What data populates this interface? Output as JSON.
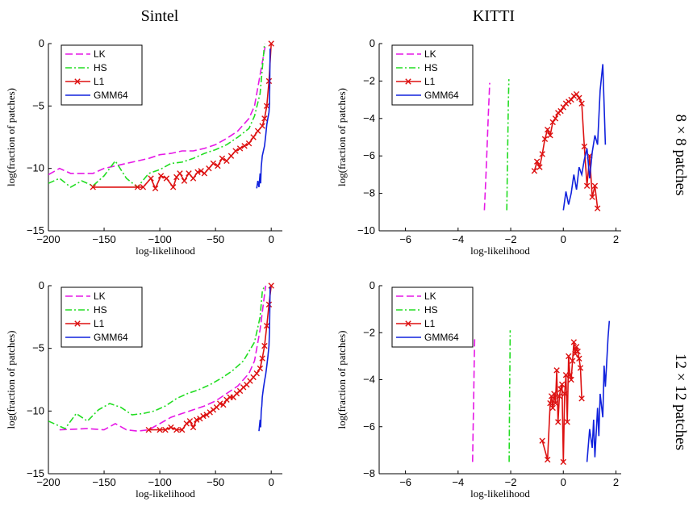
{
  "figure": {
    "col_titles": [
      "Sintel",
      "KITTI"
    ],
    "row_labels": [
      "8 × 8  patches",
      "12 × 12  patches"
    ]
  },
  "legend": [
    "LK",
    "HS",
    "L1",
    "GMM64"
  ],
  "colors": {
    "LK": "#e619e6",
    "HS": "#22dd22",
    "L1": "#dd1111",
    "GMM64": "#1122dd"
  },
  "chart_data": [
    {
      "type": "line",
      "dataset": "Sintel",
      "patches": "8 × 8",
      "xlabel": "log-likelihood",
      "ylabel": "log(fraction of patches)",
      "xlim": [
        -200,
        10
      ],
      "ylim": [
        -15,
        0
      ],
      "xticks": [
        -200,
        -150,
        -100,
        -50,
        0
      ],
      "yticks": [
        -15,
        -10,
        -5,
        0
      ],
      "grid": false,
      "legend_position": "top-left",
      "series": [
        {
          "name": "LK",
          "style": "dashed",
          "x": [
            -200,
            -190,
            -180,
            -170,
            -160,
            -150,
            -140,
            -130,
            -120,
            -110,
            -100,
            -90,
            -80,
            -70,
            -60,
            -50,
            -40,
            -30,
            -20,
            -15,
            -10,
            -5
          ],
          "y": [
            -10.5,
            -10.0,
            -10.4,
            -10.4,
            -10.4,
            -10.0,
            -9.8,
            -9.6,
            -9.4,
            -9.2,
            -8.9,
            -8.8,
            -8.6,
            -8.6,
            -8.4,
            -8.1,
            -7.6,
            -7.0,
            -6.0,
            -5.0,
            -2.5,
            0
          ]
        },
        {
          "name": "HS",
          "style": "dashdot",
          "x": [
            -200,
            -190,
            -180,
            -170,
            -160,
            -150,
            -140,
            -130,
            -120,
            -110,
            -100,
            -90,
            -80,
            -70,
            -60,
            -50,
            -40,
            -30,
            -20,
            -15,
            -10,
            -6
          ],
          "y": [
            -11.2,
            -10.8,
            -11.5,
            -11.0,
            -11.4,
            -10.6,
            -9.4,
            -10.8,
            -11.5,
            -10.4,
            -10.1,
            -9.6,
            -9.5,
            -9.2,
            -8.8,
            -8.5,
            -8.1,
            -7.5,
            -6.8,
            -5.8,
            -4.0,
            0
          ]
        },
        {
          "name": "L1",
          "style": "solid-x",
          "x": [
            -160,
            -120,
            -115,
            -108,
            -104,
            -99,
            -94,
            -88,
            -85,
            -82,
            -78,
            -74,
            -70,
            -66,
            -63,
            -60,
            -56,
            -52,
            -48,
            -44,
            -40,
            -36,
            -32,
            -28,
            -24,
            -20,
            -16,
            -12,
            -8,
            -6,
            -4,
            -2,
            0
          ],
          "y": [
            -11.5,
            -11.5,
            -11.5,
            -10.8,
            -11.6,
            -10.6,
            -10.8,
            -11.5,
            -10.7,
            -10.4,
            -11.0,
            -10.4,
            -10.8,
            -10.3,
            -10.2,
            -10.4,
            -10.0,
            -9.6,
            -9.8,
            -9.2,
            -9.4,
            -9.0,
            -8.6,
            -8.4,
            -8.2,
            -8.0,
            -7.5,
            -7.0,
            -6.6,
            -6.0,
            -5.0,
            -3.0,
            0
          ]
        },
        {
          "name": "GMM64",
          "style": "solid",
          "x": [
            -13,
            -12,
            -11,
            -10,
            -9.5,
            -9,
            -8,
            -7,
            -6,
            -5,
            -4,
            -3,
            -2,
            -1.5,
            -1
          ],
          "y": [
            -11.6,
            -11.0,
            -11.5,
            -10.4,
            -11.2,
            -9.9,
            -9.0,
            -8.6,
            -8.2,
            -7.4,
            -6.5,
            -6.0,
            -5.5,
            -4.8,
            -0.4
          ]
        }
      ]
    },
    {
      "type": "line",
      "dataset": "KITTI",
      "patches": "8 × 8",
      "xlabel": "log-likelihood",
      "ylabel": "log(fraction of patches)",
      "xlim": [
        -7,
        2.2
      ],
      "ylim": [
        -10,
        0
      ],
      "xticks": [
        -6,
        -4,
        -2,
        0,
        2
      ],
      "yticks": [
        -10,
        -8,
        -6,
        -4,
        -2,
        0
      ],
      "grid": false,
      "legend_position": "top-left",
      "series": [
        {
          "name": "LK",
          "style": "dashed",
          "x": [
            -3.0,
            -2.95,
            -2.9,
            -2.85,
            -2.8
          ],
          "y": [
            -8.9,
            -7.3,
            -5.6,
            -3.8,
            -2.1
          ]
        },
        {
          "name": "HS",
          "style": "dashdot",
          "x": [
            -2.15,
            -2.13,
            -2.11,
            -2.09,
            -2.07
          ],
          "y": [
            -8.9,
            -7.0,
            -5.0,
            -3.2,
            -1.9
          ]
        },
        {
          "name": "L1",
          "style": "solid-x",
          "x": [
            -1.1,
            -1.0,
            -0.9,
            -0.8,
            -0.7,
            -0.6,
            -0.5,
            -0.4,
            -0.3,
            -0.2,
            -0.1,
            0.0,
            0.1,
            0.2,
            0.3,
            0.4,
            0.5,
            0.6,
            0.7,
            0.8,
            0.9,
            1.0,
            1.1,
            1.2,
            1.3
          ],
          "y": [
            -6.8,
            -6.3,
            -6.6,
            -5.9,
            -5.1,
            -4.6,
            -4.9,
            -4.2,
            -4.0,
            -3.7,
            -3.6,
            -3.4,
            -3.2,
            -3.1,
            -3.0,
            -2.8,
            -2.7,
            -2.9,
            -3.2,
            -5.5,
            -7.6,
            -6.0,
            -8.2,
            -7.6,
            -8.8
          ]
        },
        {
          "name": "GMM64",
          "style": "solid",
          "x": [
            0.0,
            0.1,
            0.2,
            0.3,
            0.4,
            0.5,
            0.6,
            0.7,
            0.8,
            0.9,
            1.0,
            1.1,
            1.2,
            1.3,
            1.4,
            1.5,
            1.6
          ],
          "y": [
            -8.9,
            -7.9,
            -8.6,
            -8.0,
            -7.0,
            -7.8,
            -6.6,
            -7.0,
            -6.2,
            -5.6,
            -7.2,
            -5.8,
            -4.9,
            -5.4,
            -2.5,
            -1.1,
            -5.4
          ]
        }
      ]
    },
    {
      "type": "line",
      "dataset": "Sintel",
      "patches": "12 × 12",
      "xlabel": "log-likelihood",
      "ylabel": "log(fraction of patches)",
      "xlim": [
        -200,
        10
      ],
      "ylim": [
        -15,
        0
      ],
      "xticks": [
        -200,
        -150,
        -100,
        -50,
        0
      ],
      "yticks": [
        -15,
        -10,
        -5,
        0
      ],
      "grid": false,
      "legend_position": "top-left",
      "series": [
        {
          "name": "LK",
          "style": "dashed",
          "x": [
            -190,
            -165,
            -150,
            -140,
            -130,
            -120,
            -110,
            -100,
            -90,
            -80,
            -70,
            -60,
            -50,
            -40,
            -30,
            -20,
            -15,
            -10,
            -5
          ],
          "y": [
            -11.5,
            -11.4,
            -11.5,
            -11.0,
            -11.5,
            -11.6,
            -11.5,
            -11.0,
            -10.5,
            -10.2,
            -9.9,
            -9.6,
            -9.2,
            -8.6,
            -8.0,
            -7.0,
            -6.0,
            -3.5,
            0
          ]
        },
        {
          "name": "HS",
          "style": "dashdot",
          "x": [
            -200,
            -185,
            -175,
            -165,
            -155,
            -145,
            -135,
            -125,
            -115,
            -105,
            -95,
            -85,
            -75,
            -65,
            -55,
            -45,
            -35,
            -25,
            -15,
            -10,
            -8,
            -6
          ],
          "y": [
            -10.8,
            -11.4,
            -10.2,
            -10.8,
            -9.9,
            -9.4,
            -9.7,
            -10.3,
            -10.2,
            -10.0,
            -9.6,
            -9.0,
            -8.6,
            -8.3,
            -7.9,
            -7.4,
            -6.8,
            -6.0,
            -4.5,
            -2.5,
            -0.5,
            0
          ]
        },
        {
          "name": "L1",
          "style": "solid-x",
          "x": [
            -110,
            -100,
            -95,
            -90,
            -85,
            -80,
            -76,
            -73,
            -70,
            -67,
            -64,
            -61,
            -58,
            -55,
            -52,
            -49,
            -46,
            -43,
            -40,
            -37,
            -34,
            -31,
            -28,
            -25,
            -22,
            -19,
            -16,
            -13,
            -10,
            -8,
            -6,
            -4,
            -2,
            0
          ],
          "y": [
            -11.5,
            -11.5,
            -11.5,
            -11.3,
            -11.5,
            -11.5,
            -11.0,
            -10.8,
            -11.3,
            -10.7,
            -10.6,
            -10.4,
            -10.3,
            -10.1,
            -9.9,
            -9.7,
            -9.4,
            -9.5,
            -9.1,
            -8.9,
            -8.9,
            -8.6,
            -8.4,
            -8.1,
            -7.9,
            -7.6,
            -7.3,
            -7.0,
            -6.6,
            -5.8,
            -4.8,
            -3.2,
            -1.5,
            0
          ]
        },
        {
          "name": "GMM64",
          "style": "solid",
          "x": [
            -11,
            -10,
            -9.5,
            -9,
            -8.5,
            -8,
            -7,
            -6,
            -5,
            -4,
            -3,
            -2,
            -1.5,
            -1
          ],
          "y": [
            -11.6,
            -10.7,
            -11.3,
            -10.0,
            -9.6,
            -8.9,
            -8.2,
            -7.6,
            -7.1,
            -6.4,
            -5.7,
            -4.8,
            -3.5,
            -0.1
          ]
        }
      ]
    },
    {
      "type": "line",
      "dataset": "KITTI",
      "patches": "12 × 12",
      "xlabel": "log-likelihood",
      "ylabel": "log(fraction of patches)",
      "xlim": [
        -7,
        2.2
      ],
      "ylim": [
        -8,
        0
      ],
      "xticks": [
        -6,
        -4,
        -2,
        0,
        2
      ],
      "yticks": [
        -8,
        -6,
        -4,
        -2,
        0
      ],
      "grid": false,
      "legend_position": "top-left",
      "series": [
        {
          "name": "LK",
          "style": "dashed",
          "x": [
            -3.45,
            -3.43,
            -3.41,
            -3.39,
            -3.37
          ],
          "y": [
            -7.5,
            -6.2,
            -4.9,
            -3.5,
            -2.2
          ]
        },
        {
          "name": "HS",
          "style": "dashdot",
          "x": [
            -2.06,
            -2.05,
            -2.04,
            -2.03,
            -2.02
          ],
          "y": [
            -7.5,
            -6.0,
            -4.6,
            -3.2,
            -1.9
          ]
        },
        {
          "name": "L1",
          "style": "solid-x",
          "x": [
            -0.8,
            -0.6,
            -0.5,
            -0.45,
            -0.4,
            -0.35,
            -0.3,
            -0.25,
            -0.2,
            -0.15,
            -0.1,
            -0.05,
            0.0,
            0.05,
            0.1,
            0.15,
            0.2,
            0.25,
            0.3,
            0.35,
            0.4,
            0.45,
            0.5,
            0.55,
            0.6,
            0.65,
            0.7
          ],
          "y": [
            -6.6,
            -7.4,
            -5.0,
            -4.7,
            -5.2,
            -4.6,
            -5.0,
            -3.6,
            -5.8,
            -4.7,
            -4.4,
            -4.2,
            -7.5,
            -4.6,
            -3.8,
            -5.8,
            -3.0,
            -3.8,
            -4.0,
            -3.2,
            -2.4,
            -2.9,
            -2.6,
            -2.8,
            -3.1,
            -3.5,
            -4.8
          ]
        },
        {
          "name": "GMM64",
          "style": "solid",
          "x": [
            0.9,
            1.0,
            1.1,
            1.15,
            1.2,
            1.3,
            1.35,
            1.4,
            1.5,
            1.55,
            1.6,
            1.7,
            1.75
          ],
          "y": [
            -7.5,
            -6.1,
            -6.9,
            -5.7,
            -7.3,
            -5.2,
            -6.4,
            -4.6,
            -5.6,
            -3.4,
            -4.3,
            -2.2,
            -1.5
          ]
        }
      ]
    }
  ]
}
